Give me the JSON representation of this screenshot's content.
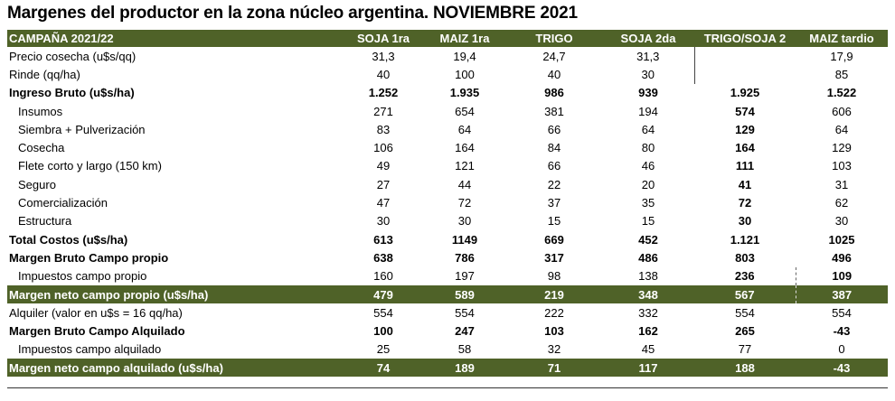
{
  "title": "Margenes del productor en la zona núcleo argentina. NOVIEMBRE 2021",
  "columns": [
    "CAMPAÑA 2021/22",
    "SOJA 1ra",
    "MAIZ 1ra",
    "TRIGO",
    "SOJA 2da",
    "TRIGO/SOJA 2",
    "MAIZ tardio"
  ],
  "rows": [
    {
      "label": "Precio cosecha (u$s/qq)",
      "cells": [
        "31,3",
        "19,4",
        "24,7",
        "31,3",
        "",
        "17,9"
      ]
    },
    {
      "label": "Rinde (qq/ha)",
      "cells": [
        "40",
        "100",
        "40",
        "30",
        "",
        "85"
      ]
    },
    {
      "label": "Ingreso Bruto (u$s/ha)",
      "cells": [
        "1.252",
        "1.935",
        "986",
        "939",
        "1.925",
        "1.522"
      ]
    },
    {
      "label": "Insumos",
      "cells": [
        "271",
        "654",
        "381",
        "194",
        "574",
        "606"
      ]
    },
    {
      "label": "Siembra + Pulverización",
      "cells": [
        "83",
        "64",
        "66",
        "64",
        "129",
        "64"
      ]
    },
    {
      "label": "Cosecha",
      "cells": [
        "106",
        "164",
        "84",
        "80",
        "164",
        "129"
      ]
    },
    {
      "label": "Flete corto y largo (150 km)",
      "cells": [
        "49",
        "121",
        "66",
        "46",
        "111",
        "103"
      ]
    },
    {
      "label": "Seguro",
      "cells": [
        "27",
        "44",
        "22",
        "20",
        "41",
        "31"
      ]
    },
    {
      "label": "Comercialización",
      "cells": [
        "47",
        "72",
        "37",
        "35",
        "72",
        "62"
      ]
    },
    {
      "label": "Estructura",
      "cells": [
        "30",
        "30",
        "15",
        "15",
        "30",
        "30"
      ]
    },
    {
      "label": "Total Costos (u$s/ha)",
      "cells": [
        "613",
        "1149",
        "669",
        "452",
        "1.121",
        "1025"
      ]
    },
    {
      "label": "Margen Bruto Campo propio",
      "cells": [
        "638",
        "786",
        "317",
        "486",
        "803",
        "496"
      ]
    },
    {
      "label": "Impuestos  campo propio",
      "cells": [
        "160",
        "197",
        "98",
        "138",
        "236",
        "109"
      ]
    },
    {
      "label": "Margen neto campo propio (u$s/ha)",
      "cells": [
        "479",
        "589",
        "219",
        "348",
        "567",
        "387"
      ]
    },
    {
      "label": "Alquiler (valor en u$s = 16 qq/ha)",
      "cells": [
        "554",
        "554",
        "222",
        "332",
        "554",
        "554"
      ]
    },
    {
      "label": "Margen Bruto Campo Alquilado",
      "cells": [
        "100",
        "247",
        "103",
        "162",
        "265",
        "-43"
      ]
    },
    {
      "label": "Impuestos campo alquilado",
      "cells": [
        "25",
        "58",
        "32",
        "45",
        "77",
        "0"
      ]
    },
    {
      "label": "Margen neto campo alquilado (u$s/ha)",
      "cells": [
        "74",
        "189",
        "71",
        "117",
        "188",
        "-43"
      ]
    }
  ]
}
